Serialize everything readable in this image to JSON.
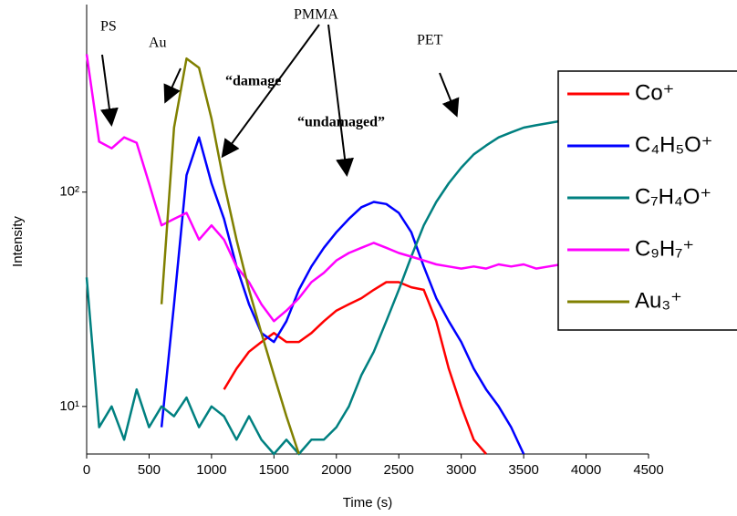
{
  "chart_data": {
    "type": "line",
    "x_label": "Time (s)",
    "y_label": "Intensity",
    "x": [
      0,
      100,
      200,
      300,
      400,
      500,
      600,
      700,
      800,
      900,
      1000,
      1100,
      1200,
      1300,
      1400,
      1500,
      1600,
      1700,
      1800,
      1900,
      2000,
      2100,
      2200,
      2300,
      2400,
      2500,
      2600,
      2700,
      2800,
      2900,
      3000,
      3100,
      3200,
      3300,
      3400,
      3500,
      3600,
      3700,
      3800
    ],
    "series": [
      {
        "name": "Co⁺",
        "color": "#ff0000",
        "values": [
          null,
          null,
          null,
          null,
          null,
          null,
          null,
          null,
          null,
          null,
          null,
          12,
          15,
          18,
          20,
          22,
          20,
          20,
          22,
          25,
          28,
          30,
          32,
          35,
          38,
          38,
          36,
          35,
          25,
          15,
          10,
          7,
          6,
          null,
          null,
          null,
          null,
          null,
          null
        ]
      },
      {
        "name": "C₄H₅O⁺",
        "color": "#0000ff",
        "values": [
          null,
          null,
          null,
          null,
          null,
          null,
          8,
          30,
          120,
          180,
          110,
          75,
          45,
          30,
          22,
          20,
          25,
          35,
          45,
          55,
          65,
          75,
          85,
          90,
          88,
          80,
          65,
          45,
          32,
          25,
          20,
          15,
          12,
          10,
          8,
          6,
          null,
          null,
          null
        ]
      },
      {
        "name": "C₇H₄O⁺",
        "color": "#008080",
        "values": [
          40,
          8,
          10,
          7,
          12,
          8,
          10,
          9,
          11,
          8,
          10,
          9,
          7,
          9,
          7,
          6,
          7,
          6,
          7,
          7,
          8,
          10,
          14,
          18,
          25,
          35,
          50,
          70,
          90,
          110,
          130,
          150,
          165,
          180,
          190,
          200,
          205,
          210,
          215
        ]
      },
      {
        "name": "C₉H₇⁺",
        "color": "#ff00ff",
        "values": [
          440,
          172,
          160,
          180,
          170,
          110,
          70,
          75,
          80,
          60,
          70,
          60,
          45,
          38,
          30,
          25,
          28,
          32,
          38,
          42,
          48,
          52,
          55,
          58,
          55,
          52,
          50,
          48,
          46,
          45,
          44,
          45,
          44,
          46,
          45,
          46,
          44,
          45,
          46
        ]
      },
      {
        "name": "Au₃⁺",
        "color": "#808000",
        "values": [
          null,
          null,
          null,
          null,
          null,
          null,
          30,
          200,
          420,
          380,
          220,
          110,
          60,
          35,
          22,
          14,
          9,
          6,
          null,
          null,
          null,
          null,
          null,
          null,
          null,
          null,
          null,
          null,
          null,
          null,
          null,
          null,
          null,
          null,
          null,
          null,
          null,
          null,
          null
        ]
      }
    ],
    "xlim": [
      0,
      4500
    ],
    "xticks": [
      0,
      500,
      1000,
      1500,
      2000,
      2500,
      3000,
      3500,
      4000,
      4500
    ],
    "ylim": [
      6,
      750
    ],
    "yticks": [
      {
        "value": 10,
        "label": "10¹"
      },
      {
        "value": 100,
        "label": "10²"
      }
    ],
    "y_log": true,
    "annotations": [
      "PS",
      "Au",
      "PMMA",
      "“damage",
      "“undamaged”",
      "PET"
    ]
  }
}
